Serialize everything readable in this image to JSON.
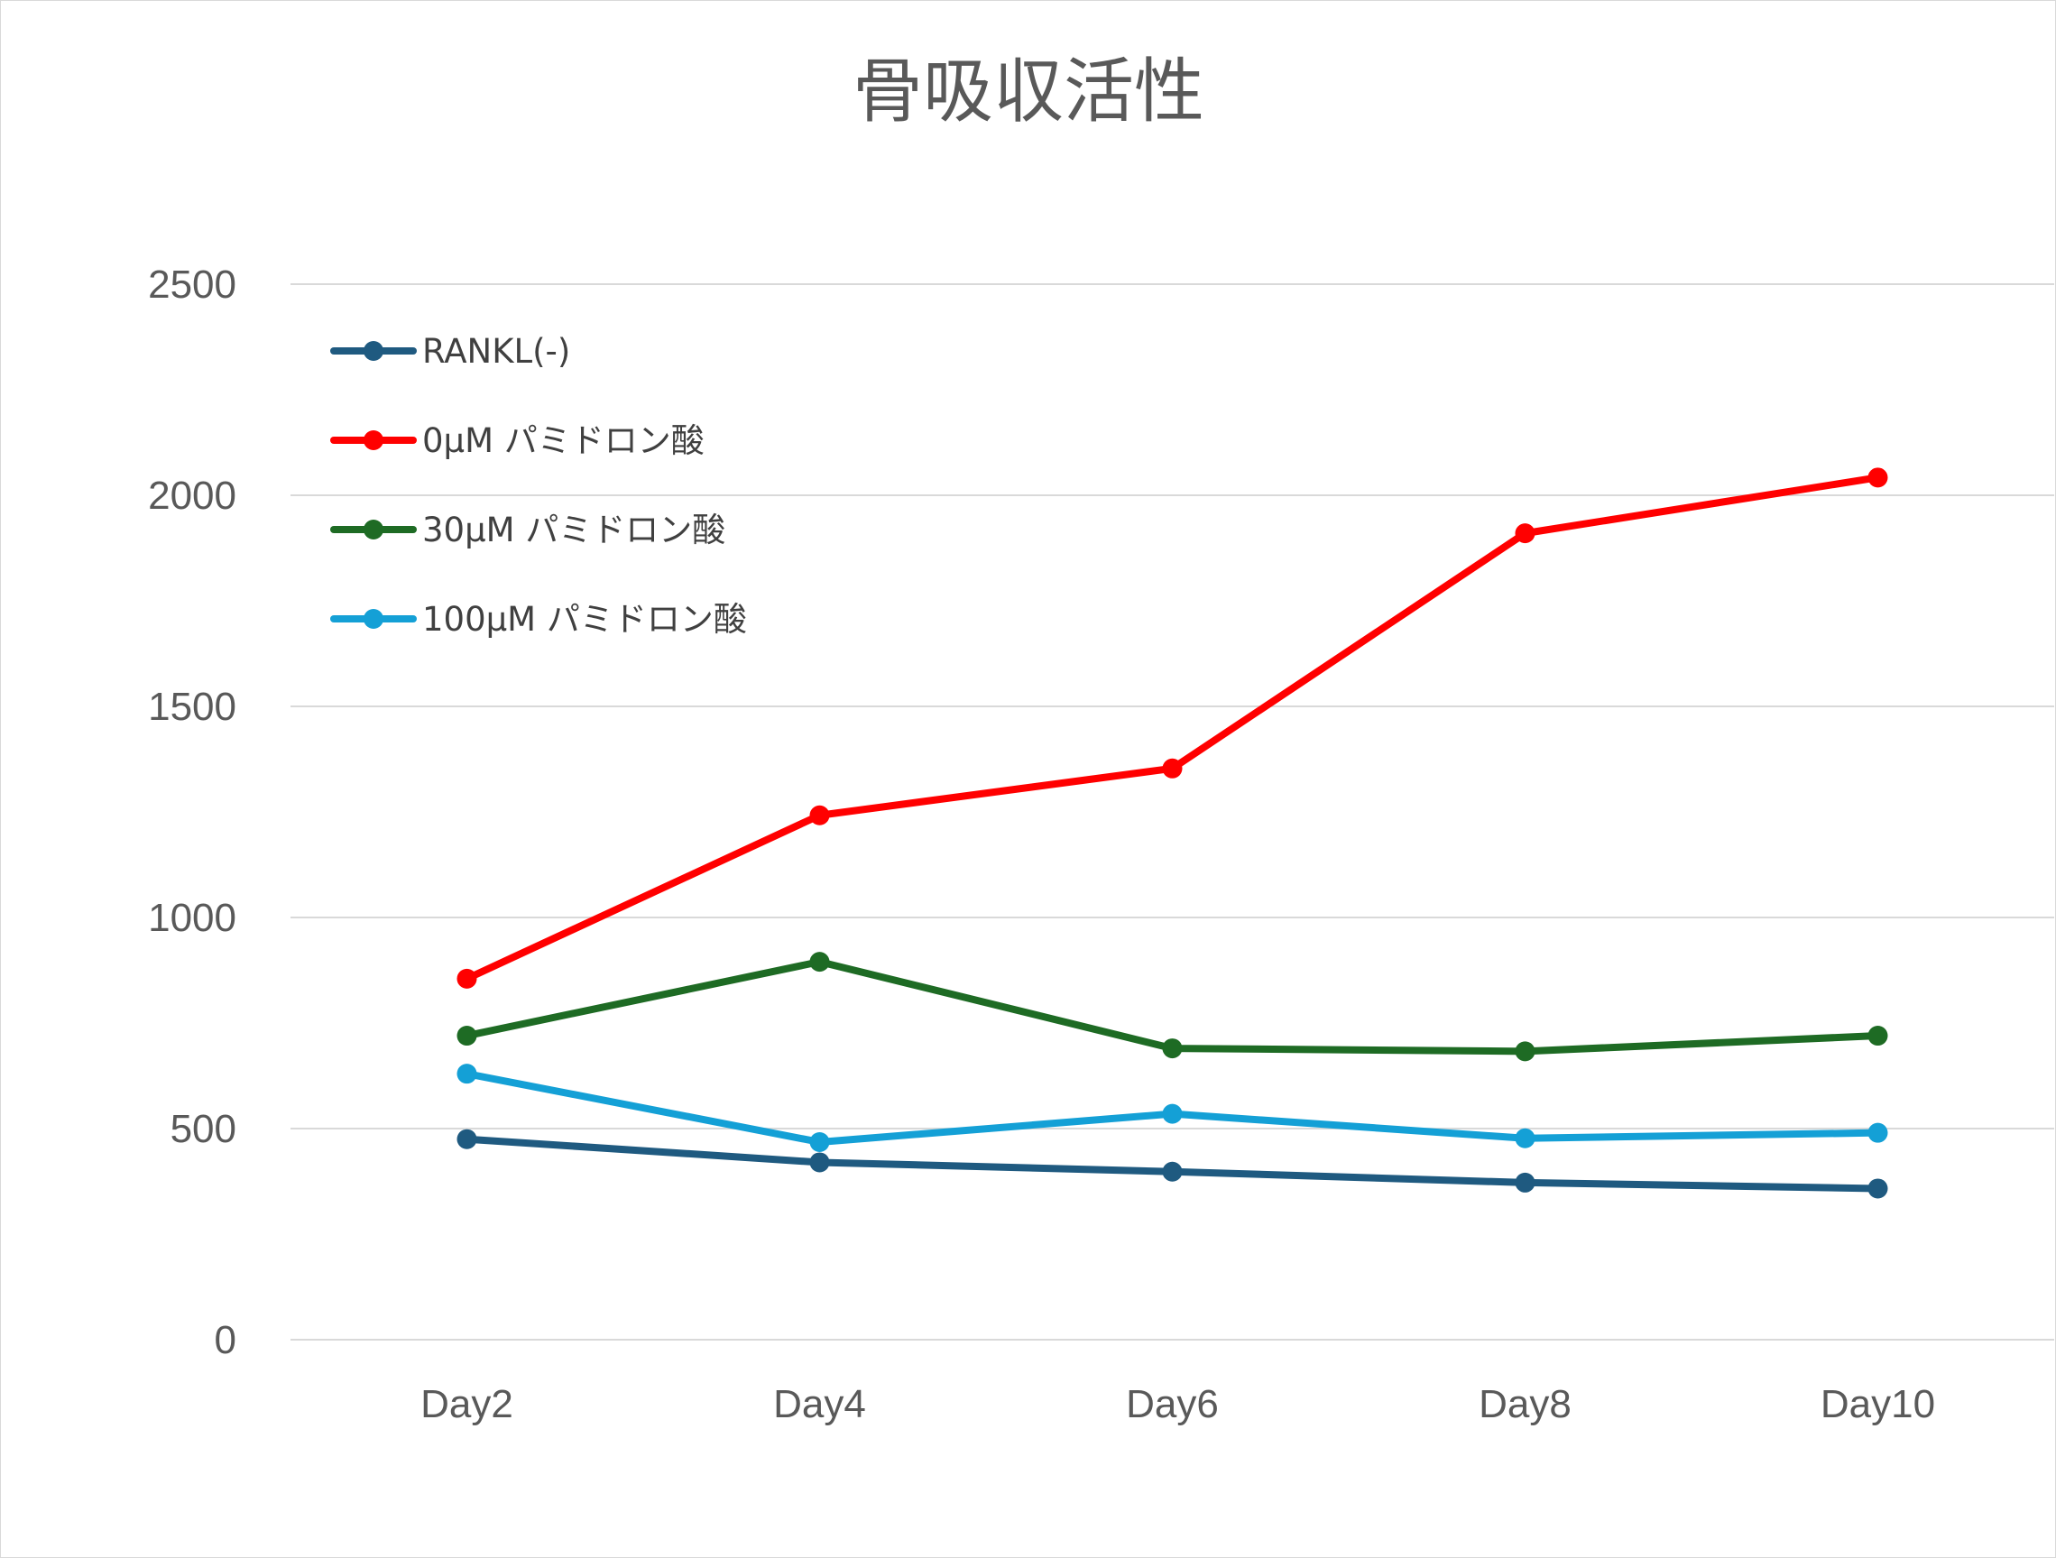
{
  "chart_data": {
    "type": "line",
    "title": "骨吸収活性",
    "xlabel": "",
    "ylabel": "",
    "categories": [
      "Day2",
      "Day4",
      "Day6",
      "Day8",
      "Day10"
    ],
    "ylim": [
      0,
      2500
    ],
    "yticks": [
      0,
      500,
      1000,
      1500,
      2000,
      2500
    ],
    "grid": true,
    "legend_position": "top-left",
    "series": [
      {
        "name": "RANKL(-)",
        "color": "#1f5a80",
        "values": [
          475,
          420,
          398,
          372,
          358
        ]
      },
      {
        "name": "0μM パミドロン酸",
        "color": "#ff0000",
        "values": [
          855,
          1242,
          1353,
          1910,
          2042
        ]
      },
      {
        "name": "30μM パミドロン酸",
        "color": "#1e6b24",
        "values": [
          720,
          895,
          690,
          683,
          720
        ]
      },
      {
        "name": "100μM パミドロン酸",
        "color": "#14a0d6",
        "values": [
          630,
          468,
          535,
          477,
          490
        ]
      }
    ]
  }
}
